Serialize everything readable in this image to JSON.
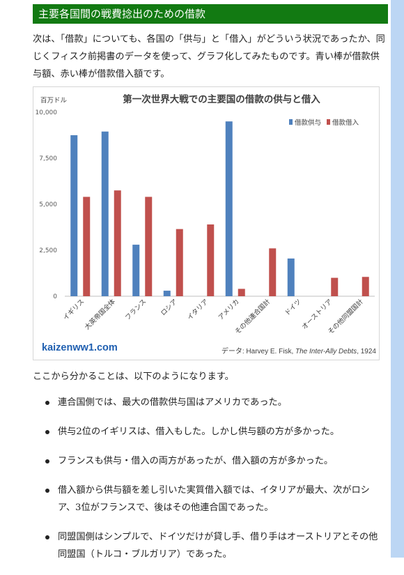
{
  "header": {
    "title": "主要各国間の戦費捻出のための借款"
  },
  "intro": {
    "text": "次は、「借款」についても、各国の「供与」と「借入」がどういう状況であったか、同じくフィスク前掲書のデータを使って、グラフ化してみたものです。青い棒が借款供与額、赤い棒が借款借入額です。"
  },
  "colors": {
    "header": "#127a12",
    "lend": "#4f81bd",
    "borrow": "#c0504d",
    "site": "#1f5fb0",
    "scrollbar": "#bcd6f4"
  },
  "chart_data": {
    "type": "bar",
    "title": "第一次世界大戦での主要国の借款の供与と借入",
    "unit_label": "百万ドル",
    "categories": [
      "イギリス",
      "大英帝国全体",
      "フランス",
      "ロシア",
      "イタリア",
      "アメリカ",
      "その他連合国計",
      "ドイツ",
      "オーストリア",
      "その他同盟国計"
    ],
    "series": [
      {
        "name": "借款供与",
        "values": [
          8750,
          8950,
          2800,
          300,
          0,
          9500,
          0,
          2050,
          0,
          0
        ]
      },
      {
        "name": "借款借入",
        "values": [
          5400,
          5750,
          5400,
          3650,
          3900,
          400,
          2600,
          0,
          1000,
          1050
        ]
      }
    ],
    "ylim": [
      0,
      10000
    ],
    "yticks": [
      "0",
      "2,500",
      "5,000",
      "7,500",
      "10,000"
    ],
    "ytick_values": [
      0,
      2500,
      5000,
      7500,
      10000
    ],
    "legend_position": "top-right",
    "grid": false,
    "watermark": "kaizenww1.com",
    "source_prefix": "データ: Harvey E. Fisk, ",
    "source_title": "The Inter-Ally Debts",
    "source_year": ", 1924"
  },
  "lead": {
    "text": "ここから分かることは、以下のようになります。"
  },
  "bullets": [
    "連合国側では、最大の借款供与国はアメリカであった。",
    "供与2位のイギリスは、借入もした。しかし供与額の方が多かった。",
    "フランスも供与・借入の両方があったが、借入額の方が多かった。",
    "借入額から供与額を差し引いた実質借入額では、イタリアが最大、次がロシア、3位がフランスで、後はその他連合国であった。",
    "同盟国側はシンプルで、ドイツだけが貸し手、借り手はオーストリアとその他同盟国（トルコ・ブルガリア）であった。"
  ]
}
